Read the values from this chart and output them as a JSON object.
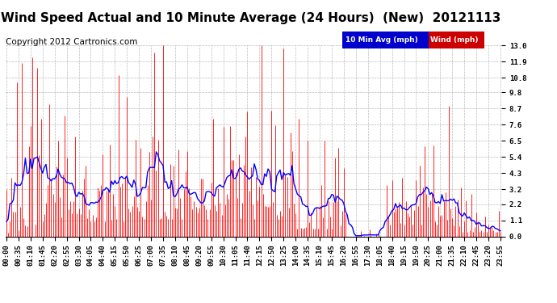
{
  "title": "Wind Speed Actual and 10 Minute Average (24 Hours)  (New)  20121113",
  "copyright": "Copyright 2012 Cartronics.com",
  "legend_avg_label": "10 Min Avg (mph)",
  "legend_wind_label": "Wind (mph)",
  "ymin": 0.0,
  "ymax": 13.0,
  "yticks": [
    0.0,
    1.1,
    2.2,
    3.2,
    4.3,
    5.4,
    6.5,
    7.6,
    8.7,
    9.8,
    10.8,
    11.9,
    13.0
  ],
  "background_color": "#ffffff",
  "plot_bg": "#ffffff",
  "grid_color": "#bbbbbb",
  "title_fontsize": 11,
  "copyright_fontsize": 7.5,
  "tick_fontsize": 6.5,
  "wind_color": "#ff0000",
  "avg_color": "#0000ff",
  "num_points": 288,
  "tick_every": 7
}
